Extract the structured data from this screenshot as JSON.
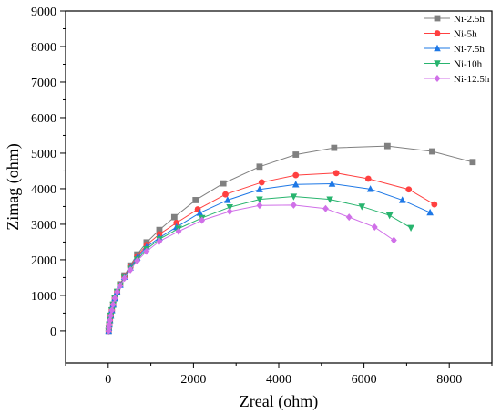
{
  "chart_data": {
    "type": "scatter",
    "title": "",
    "xlabel": "Zreal (ohm)",
    "ylabel": "Zimag (ohm)",
    "xlim": [
      -1000,
      9000
    ],
    "ylim": [
      -900,
      9000
    ],
    "xticks": [
      0,
      2000,
      4000,
      6000,
      8000
    ],
    "yticks": [
      0,
      1000,
      2000,
      3000,
      4000,
      5000,
      6000,
      7000,
      8000,
      9000
    ],
    "grid": false,
    "legend_position": "top-right",
    "series": [
      {
        "name": "Ni-2.5h",
        "color": "#808080",
        "marker": "square",
        "points": [
          [
            10,
            0
          ],
          [
            15,
            80
          ],
          [
            25,
            180
          ],
          [
            40,
            300
          ],
          [
            60,
            430
          ],
          [
            85,
            580
          ],
          [
            115,
            740
          ],
          [
            155,
            920
          ],
          [
            210,
            1100
          ],
          [
            280,
            1310
          ],
          [
            380,
            1560
          ],
          [
            520,
            1840
          ],
          [
            680,
            2150
          ],
          [
            900,
            2490
          ],
          [
            1200,
            2840
          ],
          [
            1550,
            3200
          ],
          [
            2050,
            3680
          ],
          [
            2700,
            4150
          ],
          [
            3550,
            4620
          ],
          [
            4400,
            4960
          ],
          [
            5300,
            5150
          ],
          [
            6550,
            5200
          ],
          [
            7600,
            5050
          ],
          [
            8550,
            4750
          ]
        ]
      },
      {
        "name": "Ni-5h",
        "color": "#ff4040",
        "marker": "circle",
        "points": [
          [
            10,
            0
          ],
          [
            15,
            80
          ],
          [
            25,
            180
          ],
          [
            40,
            300
          ],
          [
            60,
            430
          ],
          [
            85,
            580
          ],
          [
            115,
            740
          ],
          [
            155,
            920
          ],
          [
            210,
            1100
          ],
          [
            280,
            1300
          ],
          [
            380,
            1540
          ],
          [
            520,
            1800
          ],
          [
            680,
            2100
          ],
          [
            900,
            2420
          ],
          [
            1200,
            2720
          ],
          [
            1600,
            3040
          ],
          [
            2100,
            3420
          ],
          [
            2750,
            3840
          ],
          [
            3600,
            4180
          ],
          [
            4400,
            4380
          ],
          [
            5350,
            4440
          ],
          [
            6100,
            4280
          ],
          [
            7050,
            3980
          ],
          [
            7650,
            3560
          ]
        ]
      },
      {
        "name": "Ni-7.5h",
        "color": "#1e78e6",
        "marker": "triangle-up",
        "points": [
          [
            10,
            0
          ],
          [
            15,
            80
          ],
          [
            25,
            180
          ],
          [
            40,
            300
          ],
          [
            60,
            430
          ],
          [
            85,
            580
          ],
          [
            115,
            740
          ],
          [
            155,
            920
          ],
          [
            210,
            1100
          ],
          [
            280,
            1290
          ],
          [
            380,
            1520
          ],
          [
            520,
            1780
          ],
          [
            680,
            2060
          ],
          [
            900,
            2360
          ],
          [
            1200,
            2620
          ],
          [
            1600,
            2920
          ],
          [
            2150,
            3320
          ],
          [
            2800,
            3680
          ],
          [
            3550,
            3980
          ],
          [
            4400,
            4120
          ],
          [
            5250,
            4140
          ],
          [
            6150,
            3990
          ],
          [
            6900,
            3680
          ],
          [
            7550,
            3330
          ]
        ]
      },
      {
        "name": "Ni-10h",
        "color": "#28b46e",
        "marker": "triangle-down",
        "points": [
          [
            10,
            0
          ],
          [
            15,
            80
          ],
          [
            25,
            180
          ],
          [
            40,
            300
          ],
          [
            60,
            430
          ],
          [
            85,
            580
          ],
          [
            115,
            740
          ],
          [
            155,
            920
          ],
          [
            210,
            1100
          ],
          [
            280,
            1280
          ],
          [
            380,
            1500
          ],
          [
            520,
            1750
          ],
          [
            680,
            2010
          ],
          [
            900,
            2300
          ],
          [
            1200,
            2580
          ],
          [
            1650,
            2880
          ],
          [
            2200,
            3180
          ],
          [
            2850,
            3480
          ],
          [
            3550,
            3700
          ],
          [
            4350,
            3780
          ],
          [
            5200,
            3700
          ],
          [
            5950,
            3500
          ],
          [
            6600,
            3250
          ],
          [
            7100,
            2900
          ]
        ]
      },
      {
        "name": "Ni-12.5h",
        "color": "#d070e8",
        "marker": "diamond",
        "points": [
          [
            10,
            0
          ],
          [
            15,
            80
          ],
          [
            25,
            180
          ],
          [
            40,
            300
          ],
          [
            60,
            430
          ],
          [
            85,
            580
          ],
          [
            115,
            740
          ],
          [
            155,
            920
          ],
          [
            210,
            1100
          ],
          [
            280,
            1270
          ],
          [
            380,
            1480
          ],
          [
            520,
            1720
          ],
          [
            680,
            1970
          ],
          [
            900,
            2240
          ],
          [
            1200,
            2520
          ],
          [
            1650,
            2800
          ],
          [
            2200,
            3110
          ],
          [
            2850,
            3360
          ],
          [
            3550,
            3530
          ],
          [
            4350,
            3540
          ],
          [
            5100,
            3440
          ],
          [
            5650,
            3200
          ],
          [
            6250,
            2920
          ],
          [
            6700,
            2550
          ]
        ]
      }
    ]
  }
}
